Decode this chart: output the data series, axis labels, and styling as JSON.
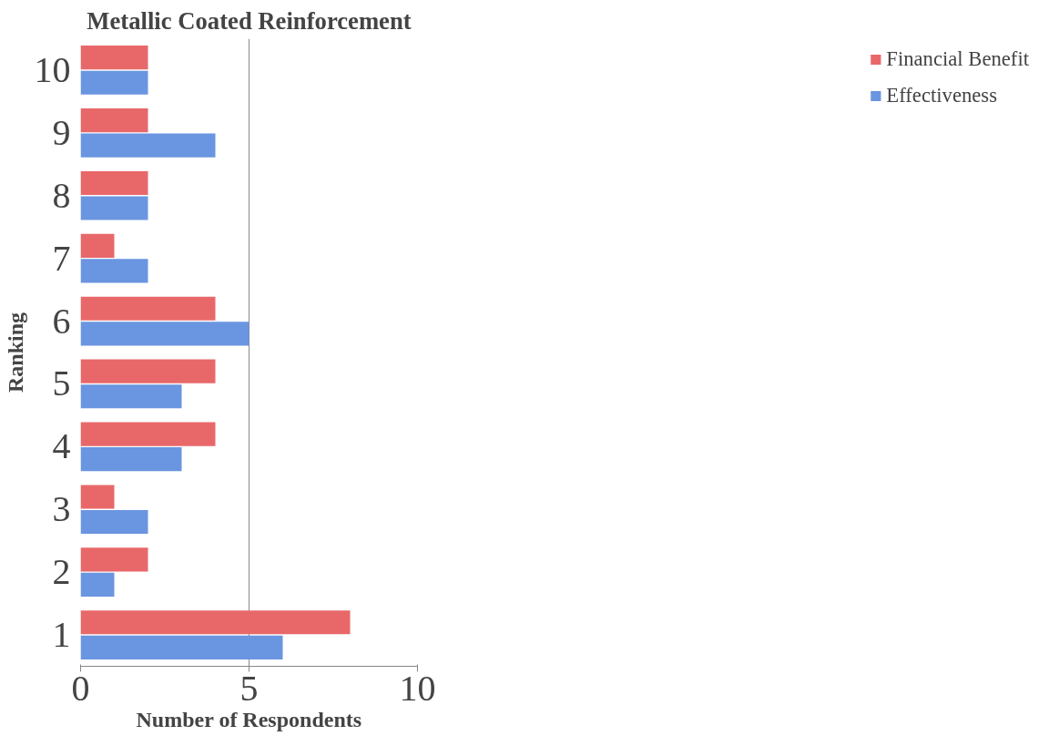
{
  "chart_data": {
    "type": "bar",
    "orientation": "horizontal",
    "title": "Metallic Coated Reinforcement",
    "xlabel": "Number of Respondents",
    "ylabel": "Ranking",
    "categories": [
      "10",
      "9",
      "8",
      "7",
      "6",
      "5",
      "4",
      "3",
      "2",
      "1"
    ],
    "series": [
      {
        "name": "Financial Benefit",
        "color": "#e8686a",
        "values": [
          2,
          2,
          2,
          1,
          4,
          4,
          4,
          1,
          2,
          8
        ]
      },
      {
        "name": "Effectiveness",
        "color": "#6a95e0",
        "values": [
          2,
          4,
          2,
          2,
          5,
          3,
          3,
          2,
          1,
          6
        ]
      }
    ],
    "xlim": [
      0,
      10
    ],
    "xticks": [
      0,
      5,
      10
    ],
    "grid": "x",
    "legend": "right"
  }
}
